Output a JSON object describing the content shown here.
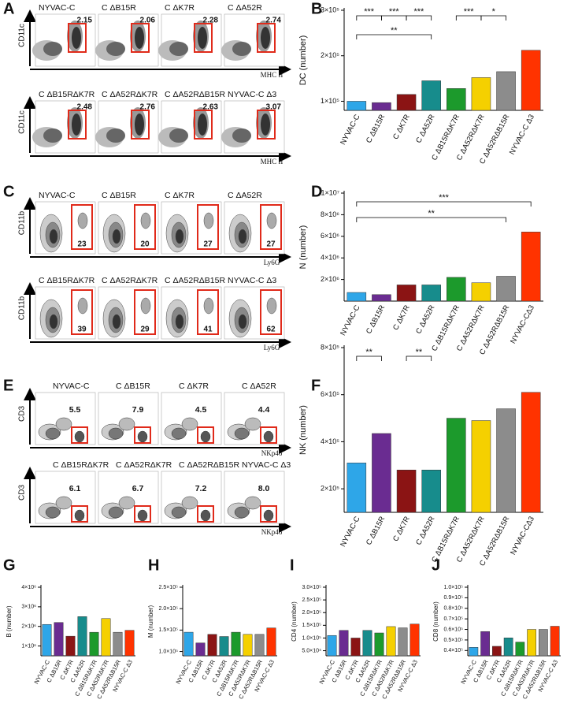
{
  "flow_panels": [
    {
      "letter": "A",
      "rows": [
        {
          "y_label": "CD11c",
          "x_label": "MHC II",
          "plots": [
            {
              "title": "NYVAC-C",
              "gate": "2.15"
            },
            {
              "title": "C ΔB15R",
              "gate": "2.06"
            },
            {
              "title": "C ΔK7R",
              "gate": "2.28"
            },
            {
              "title": "C ΔA52R",
              "gate": "2.74"
            }
          ]
        },
        {
          "y_label": "CD11c",
          "x_label": "MHC II",
          "plots": [
            {
              "title": "C ΔB15RΔK7R",
              "gate": "2.48"
            },
            {
              "title": "C ΔA52RΔK7R",
              "gate": "2.76"
            },
            {
              "title": "C ΔA52RΔB15R",
              "gate": "2.63"
            },
            {
              "title": "NYVAC-C Δ3",
              "gate": "3.07"
            }
          ]
        }
      ]
    },
    {
      "letter": "C",
      "rows": [
        {
          "y_label": "CD11b",
          "x_label": "Ly6G",
          "plots": [
            {
              "title": "NYVAC-C",
              "gate": "23"
            },
            {
              "title": "C ΔB15R",
              "gate": "20"
            },
            {
              "title": "C ΔK7R",
              "gate": "27"
            },
            {
              "title": "C ΔA52R",
              "gate": "27"
            }
          ]
        },
        {
          "y_label": "CD11b",
          "x_label": "Ly6G",
          "plots": [
            {
              "title": "C ΔB15RΔK7R",
              "gate": "39"
            },
            {
              "title": "C ΔA52RΔK7R",
              "gate": "29"
            },
            {
              "title": "C ΔA52RΔB15R",
              "gate": "41"
            },
            {
              "title": "NYVAC-C Δ3",
              "gate": "62"
            }
          ]
        }
      ]
    },
    {
      "letter": "E",
      "rows": [
        {
          "y_label": "CD3",
          "x_label": "NKp46",
          "plots": [
            {
              "title": "NYVAC-C",
              "gate": "5.5"
            },
            {
              "title": "C ΔB15R",
              "gate": "7.9"
            },
            {
              "title": "C ΔK7R",
              "gate": "4.5"
            },
            {
              "title": "C ΔA52R",
              "gate": "4.4"
            }
          ]
        },
        {
          "y_label": "CD3",
          "x_label": "NKp46",
          "plots": [
            {
              "title": "C ΔB15RΔK7R",
              "gate": "6.1"
            },
            {
              "title": "C ΔA52RΔK7R",
              "gate": "6.7"
            },
            {
              "title": "C ΔA52RΔB15R",
              "gate": "7.2"
            },
            {
              "title": "NYVAC-C Δ3",
              "gate": "8.0"
            }
          ]
        }
      ]
    }
  ],
  "chart_data": [
    {
      "type": "bar",
      "label": "B",
      "y_label": "DC (number)",
      "categories": [
        "NYVAC-C",
        "C ΔB15R",
        "C ΔK7R",
        "C ΔA52R",
        "C ΔB15RΔK7R",
        "C ΔA52RΔK7R",
        "C ΔA52RΔB15R",
        "NYVAC-C Δ3"
      ],
      "values": [
        100000,
        97000,
        115000,
        145000,
        128000,
        152000,
        165000,
        212000
      ],
      "colors": [
        "#2ea6e8",
        "#6a2c91",
        "#8b1414",
        "#178c8c",
        "#1c9a2c",
        "#f5d000",
        "#8c8c8c",
        "#ff3300"
      ],
      "ylim": [
        80000,
        300000
      ],
      "yticks": [
        {
          "value": 100000,
          "label": "1×10⁵"
        },
        {
          "value": 200000,
          "label": "2×10⁵"
        },
        {
          "value": 300000,
          "label": "3×10⁵"
        }
      ],
      "annotations": [
        "***",
        "***",
        "***",
        "***",
        "*",
        "**"
      ]
    },
    {
      "type": "bar",
      "label": "D",
      "y_label": "N (number)",
      "categories": [
        "NYVAC-C",
        "C ΔB15R",
        "C ΔK7R",
        "C ΔA52R",
        "C ΔB15RΔK7R",
        "C ΔA52RΔK7R",
        "C ΔA52RΔB15R",
        "NYVAC-CΔ3"
      ],
      "values": [
        800000,
        600000,
        1500000,
        1500000,
        2200000,
        1700000,
        2300000,
        6400000
      ],
      "colors": [
        "#2ea6e8",
        "#6a2c91",
        "#8b1414",
        "#178c8c",
        "#1c9a2c",
        "#f5d000",
        "#8c8c8c",
        "#ff3300"
      ],
      "ylim": [
        0,
        10000000
      ],
      "yticks": [
        {
          "value": 2000000,
          "label": "2×10⁶"
        },
        {
          "value": 4000000,
          "label": "4×10⁶"
        },
        {
          "value": 6000000,
          "label": "6×10⁶"
        },
        {
          "value": 8000000,
          "label": "8×10⁶"
        },
        {
          "value": 10000000,
          "label": "1×10⁷"
        }
      ],
      "annotations": [
        "***",
        "**"
      ]
    },
    {
      "type": "bar",
      "label": "F",
      "y_label": "NK (number)",
      "categories": [
        "NYVAC-C",
        "C ΔB15R",
        "C ΔK7R",
        "C ΔA52R",
        "C ΔB15RΔK7R",
        "C ΔA52RΔK7R",
        "C ΔA52RΔB15R",
        "NYVAC-CΔ3"
      ],
      "values": [
        310000,
        435000,
        280000,
        280000,
        500000,
        490000,
        540000,
        610000
      ],
      "colors": [
        "#2ea6e8",
        "#6a2c91",
        "#8b1414",
        "#178c8c",
        "#1c9a2c",
        "#f5d000",
        "#8c8c8c",
        "#ff3300"
      ],
      "ylim": [
        100000,
        800000
      ],
      "yticks": [
        {
          "value": 200000,
          "label": "2×10⁵"
        },
        {
          "value": 400000,
          "label": "4×10⁵"
        },
        {
          "value": 600000,
          "label": "6×10⁵"
        },
        {
          "value": 800000,
          "label": "8×10⁵"
        }
      ],
      "annotations": [
        "**",
        "**"
      ]
    },
    {
      "type": "bar",
      "label": "G",
      "y_label": "B (number)",
      "categories": [
        "NYVAC-C",
        "C ΔB15R",
        "C ΔK7R",
        "C ΔA52R",
        "C ΔB15RΔK7R",
        "C ΔA52RΔK7R",
        "C ΔA52RΔB15R",
        "NYVAC-C Δ3"
      ],
      "values": [
        2100000,
        2200000,
        1500000,
        2500000,
        1700000,
        2400000,
        1700000,
        1800000
      ],
      "colors": [
        "#2ea6e8",
        "#6a2c91",
        "#8b1414",
        "#178c8c",
        "#1c9a2c",
        "#f5d000",
        "#8c8c8c",
        "#ff3300"
      ],
      "ylim": [
        500000,
        4000000
      ],
      "yticks": [
        {
          "value": 1000000,
          "label": "1×10⁶"
        },
        {
          "value": 2000000,
          "label": "2×10⁶"
        },
        {
          "value": 3000000,
          "label": "3×10⁶"
        },
        {
          "value": 4000000,
          "label": "4×10⁶"
        }
      ]
    },
    {
      "type": "bar",
      "label": "H",
      "y_label": "M (number)",
      "categories": [
        "NYVAC-C",
        "C ΔB15R",
        "C ΔK7R",
        "C ΔA52R",
        "C ΔB15RΔK7R",
        "C ΔA52RΔK7R",
        "C ΔA52RΔB15R",
        "NYVAC-C Δ3"
      ],
      "values": [
        145000,
        120000,
        140000,
        135000,
        145000,
        140000,
        140000,
        155000
      ],
      "colors": [
        "#2ea6e8",
        "#6a2c91",
        "#8b1414",
        "#178c8c",
        "#1c9a2c",
        "#f5d000",
        "#8c8c8c",
        "#ff3300"
      ],
      "ylim": [
        90000,
        250000
      ],
      "yticks": [
        {
          "value": 100000,
          "label": "1.0×10⁵"
        },
        {
          "value": 150000,
          "label": "1.5×10⁵"
        },
        {
          "value": 200000,
          "label": "2.0×10⁵"
        },
        {
          "value": 250000,
          "label": "2.5×10⁵"
        }
      ]
    },
    {
      "type": "bar",
      "label": "I",
      "y_label": "CD4 (number)",
      "categories": [
        "NYVAC-C",
        "C ΔB15R",
        "C ΔK7R",
        "C ΔA52R",
        "C ΔB15RΔK7R",
        "C ΔA52RΔK7R",
        "C ΔA52RΔB15R",
        "NYVAC-C Δ3"
      ],
      "values": [
        110000,
        130000,
        100000,
        130000,
        120000,
        145000,
        140000,
        155000
      ],
      "colors": [
        "#2ea6e8",
        "#6a2c91",
        "#8b1414",
        "#178c8c",
        "#1c9a2c",
        "#f5d000",
        "#8c8c8c",
        "#ff3300"
      ],
      "ylim": [
        30000,
        300000
      ],
      "yticks": [
        {
          "value": 50000,
          "label": "5.0×10⁴"
        },
        {
          "value": 100000,
          "label": "1.0×10⁵"
        },
        {
          "value": 150000,
          "label": "1.5×10⁵"
        },
        {
          "value": 200000,
          "label": "2.0×10⁵"
        },
        {
          "value": 250000,
          "label": "2.5×10⁵"
        },
        {
          "value": 300000,
          "label": "3.0×10⁵"
        }
      ]
    },
    {
      "type": "bar",
      "label": "J",
      "y_label": "CD8 (number)",
      "categories": [
        "NYVAC-C",
        "C ΔB15R",
        "C ΔK7R",
        "C ΔA52R",
        "C ΔB15RΔK7R",
        "C ΔA52RΔK7R",
        "C ΔA52RΔB15R",
        "NYVAC-C Δ3"
      ],
      "values": [
        43000,
        58000,
        44000,
        52000,
        48000,
        60000,
        60000,
        63000
      ],
      "colors": [
        "#2ea6e8",
        "#6a2c91",
        "#8b1414",
        "#178c8c",
        "#1c9a2c",
        "#f5d000",
        "#8c8c8c",
        "#ff3300"
      ],
      "ylim": [
        35000,
        100000
      ],
      "yticks": [
        {
          "value": 40000,
          "label": "0.4×10⁵"
        },
        {
          "value": 50000,
          "label": "0.5×10⁵"
        },
        {
          "value": 60000,
          "label": "0.6×10⁵"
        },
        {
          "value": 70000,
          "label": "0.7×10⁵"
        },
        {
          "value": 80000,
          "label": "0.8×10⁵"
        },
        {
          "value": 90000,
          "label": "0.9×10⁵"
        },
        {
          "value": 100000,
          "label": "1.0×10⁵"
        }
      ]
    }
  ]
}
